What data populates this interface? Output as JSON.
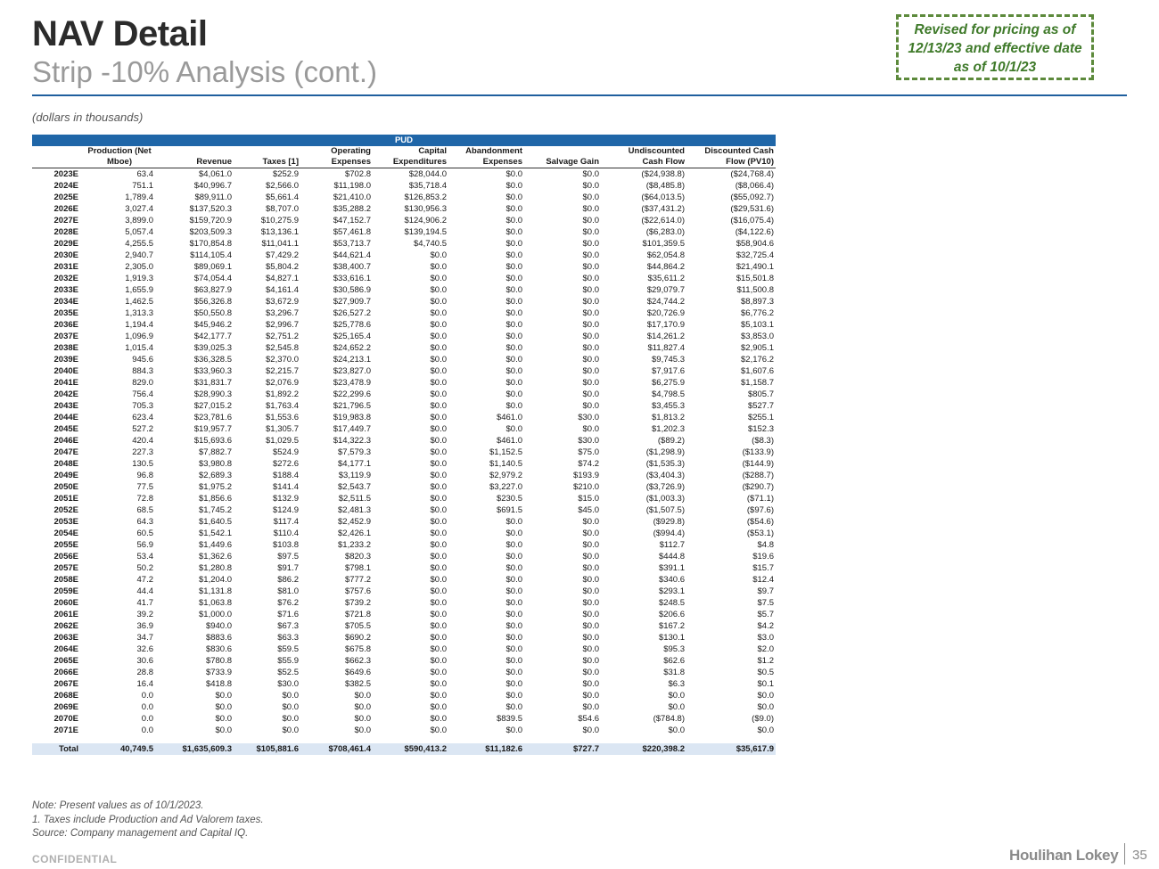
{
  "header": {
    "title": "NAV Detail",
    "subtitle": "Strip -10% Analysis (cont.)",
    "revised_note": "Revised for pricing as of 12/13/23 and effective date as of 10/1/23",
    "units": "(dollars in thousands)"
  },
  "table": {
    "band": "PUD",
    "headers_top": [
      "",
      "Production (Net",
      "",
      "",
      "Operating",
      "Capital",
      "Abandonment",
      "",
      "Undiscounted",
      "Discounted Cash"
    ],
    "headers_bottom": [
      "",
      "Mboe)",
      "Revenue",
      "Taxes [1]",
      "Expenses",
      "Expenditures",
      "Expenses",
      "Salvage Gain",
      "Cash Flow",
      "Flow (PV10)"
    ],
    "rows": [
      [
        "2023E",
        "63.4",
        "$4,061.0",
        "$252.9",
        "$702.8",
        "$28,044.0",
        "$0.0",
        "$0.0",
        "($24,938.8)",
        "($24,768.4)"
      ],
      [
        "2024E",
        "751.1",
        "$40,996.7",
        "$2,566.0",
        "$11,198.0",
        "$35,718.4",
        "$0.0",
        "$0.0",
        "($8,485.8)",
        "($8,066.4)"
      ],
      [
        "2025E",
        "1,789.4",
        "$89,911.0",
        "$5,661.4",
        "$21,410.0",
        "$126,853.2",
        "$0.0",
        "$0.0",
        "($64,013.5)",
        "($55,092.7)"
      ],
      [
        "2026E",
        "3,027.4",
        "$137,520.3",
        "$8,707.0",
        "$35,288.2",
        "$130,956.3",
        "$0.0",
        "$0.0",
        "($37,431.2)",
        "($29,531.6)"
      ],
      [
        "2027E",
        "3,899.0",
        "$159,720.9",
        "$10,275.9",
        "$47,152.7",
        "$124,906.2",
        "$0.0",
        "$0.0",
        "($22,614.0)",
        "($16,075.4)"
      ],
      [
        "2028E",
        "5,057.4",
        "$203,509.3",
        "$13,136.1",
        "$57,461.8",
        "$139,194.5",
        "$0.0",
        "$0.0",
        "($6,283.0)",
        "($4,122.6)"
      ],
      [
        "2029E",
        "4,255.5",
        "$170,854.8",
        "$11,041.1",
        "$53,713.7",
        "$4,740.5",
        "$0.0",
        "$0.0",
        "$101,359.5",
        "$58,904.6"
      ],
      [
        "2030E",
        "2,940.7",
        "$114,105.4",
        "$7,429.2",
        "$44,621.4",
        "$0.0",
        "$0.0",
        "$0.0",
        "$62,054.8",
        "$32,725.4"
      ],
      [
        "2031E",
        "2,305.0",
        "$89,069.1",
        "$5,804.2",
        "$38,400.7",
        "$0.0",
        "$0.0",
        "$0.0",
        "$44,864.2",
        "$21,490.1"
      ],
      [
        "2032E",
        "1,919.3",
        "$74,054.4",
        "$4,827.1",
        "$33,616.1",
        "$0.0",
        "$0.0",
        "$0.0",
        "$35,611.2",
        "$15,501.8"
      ],
      [
        "2033E",
        "1,655.9",
        "$63,827.9",
        "$4,161.4",
        "$30,586.9",
        "$0.0",
        "$0.0",
        "$0.0",
        "$29,079.7",
        "$11,500.8"
      ],
      [
        "2034E",
        "1,462.5",
        "$56,326.8",
        "$3,672.9",
        "$27,909.7",
        "$0.0",
        "$0.0",
        "$0.0",
        "$24,744.2",
        "$8,897.3"
      ],
      [
        "2035E",
        "1,313.3",
        "$50,550.8",
        "$3,296.7",
        "$26,527.2",
        "$0.0",
        "$0.0",
        "$0.0",
        "$20,726.9",
        "$6,776.2"
      ],
      [
        "2036E",
        "1,194.4",
        "$45,946.2",
        "$2,996.7",
        "$25,778.6",
        "$0.0",
        "$0.0",
        "$0.0",
        "$17,170.9",
        "$5,103.1"
      ],
      [
        "2037E",
        "1,096.9",
        "$42,177.7",
        "$2,751.2",
        "$25,165.4",
        "$0.0",
        "$0.0",
        "$0.0",
        "$14,261.2",
        "$3,853.0"
      ],
      [
        "2038E",
        "1,015.4",
        "$39,025.3",
        "$2,545.8",
        "$24,652.2",
        "$0.0",
        "$0.0",
        "$0.0",
        "$11,827.4",
        "$2,905.1"
      ],
      [
        "2039E",
        "945.6",
        "$36,328.5",
        "$2,370.0",
        "$24,213.1",
        "$0.0",
        "$0.0",
        "$0.0",
        "$9,745.3",
        "$2,176.2"
      ],
      [
        "2040E",
        "884.3",
        "$33,960.3",
        "$2,215.7",
        "$23,827.0",
        "$0.0",
        "$0.0",
        "$0.0",
        "$7,917.6",
        "$1,607.6"
      ],
      [
        "2041E",
        "829.0",
        "$31,831.7",
        "$2,076.9",
        "$23,478.9",
        "$0.0",
        "$0.0",
        "$0.0",
        "$6,275.9",
        "$1,158.7"
      ],
      [
        "2042E",
        "756.4",
        "$28,990.3",
        "$1,892.2",
        "$22,299.6",
        "$0.0",
        "$0.0",
        "$0.0",
        "$4,798.5",
        "$805.7"
      ],
      [
        "2043E",
        "705.3",
        "$27,015.2",
        "$1,763.4",
        "$21,796.5",
        "$0.0",
        "$0.0",
        "$0.0",
        "$3,455.3",
        "$527.7"
      ],
      [
        "2044E",
        "623.4",
        "$23,781.6",
        "$1,553.6",
        "$19,983.8",
        "$0.0",
        "$461.0",
        "$30.0",
        "$1,813.2",
        "$255.1"
      ],
      [
        "2045E",
        "527.2",
        "$19,957.7",
        "$1,305.7",
        "$17,449.7",
        "$0.0",
        "$0.0",
        "$0.0",
        "$1,202.3",
        "$152.3"
      ],
      [
        "2046E",
        "420.4",
        "$15,693.6",
        "$1,029.5",
        "$14,322.3",
        "$0.0",
        "$461.0",
        "$30.0",
        "($89.2)",
        "($8.3)"
      ],
      [
        "2047E",
        "227.3",
        "$7,882.7",
        "$524.9",
        "$7,579.3",
        "$0.0",
        "$1,152.5",
        "$75.0",
        "($1,298.9)",
        "($133.9)"
      ],
      [
        "2048E",
        "130.5",
        "$3,980.8",
        "$272.6",
        "$4,177.1",
        "$0.0",
        "$1,140.5",
        "$74.2",
        "($1,535.3)",
        "($144.9)"
      ],
      [
        "2049E",
        "96.8",
        "$2,689.3",
        "$188.4",
        "$3,119.9",
        "$0.0",
        "$2,979.2",
        "$193.9",
        "($3,404.3)",
        "($288.7)"
      ],
      [
        "2050E",
        "77.5",
        "$1,975.2",
        "$141.4",
        "$2,543.7",
        "$0.0",
        "$3,227.0",
        "$210.0",
        "($3,726.9)",
        "($290.7)"
      ],
      [
        "2051E",
        "72.8",
        "$1,856.6",
        "$132.9",
        "$2,511.5",
        "$0.0",
        "$230.5",
        "$15.0",
        "($1,003.3)",
        "($71.1)"
      ],
      [
        "2052E",
        "68.5",
        "$1,745.2",
        "$124.9",
        "$2,481.3",
        "$0.0",
        "$691.5",
        "$45.0",
        "($1,507.5)",
        "($97.6)"
      ],
      [
        "2053E",
        "64.3",
        "$1,640.5",
        "$117.4",
        "$2,452.9",
        "$0.0",
        "$0.0",
        "$0.0",
        "($929.8)",
        "($54.6)"
      ],
      [
        "2054E",
        "60.5",
        "$1,542.1",
        "$110.4",
        "$2,426.1",
        "$0.0",
        "$0.0",
        "$0.0",
        "($994.4)",
        "($53.1)"
      ],
      [
        "2055E",
        "56.9",
        "$1,449.6",
        "$103.8",
        "$1,233.2",
        "$0.0",
        "$0.0",
        "$0.0",
        "$112.7",
        "$4.8"
      ],
      [
        "2056E",
        "53.4",
        "$1,362.6",
        "$97.5",
        "$820.3",
        "$0.0",
        "$0.0",
        "$0.0",
        "$444.8",
        "$19.6"
      ],
      [
        "2057E",
        "50.2",
        "$1,280.8",
        "$91.7",
        "$798.1",
        "$0.0",
        "$0.0",
        "$0.0",
        "$391.1",
        "$15.7"
      ],
      [
        "2058E",
        "47.2",
        "$1,204.0",
        "$86.2",
        "$777.2",
        "$0.0",
        "$0.0",
        "$0.0",
        "$340.6",
        "$12.4"
      ],
      [
        "2059E",
        "44.4",
        "$1,131.8",
        "$81.0",
        "$757.6",
        "$0.0",
        "$0.0",
        "$0.0",
        "$293.1",
        "$9.7"
      ],
      [
        "2060E",
        "41.7",
        "$1,063.8",
        "$76.2",
        "$739.2",
        "$0.0",
        "$0.0",
        "$0.0",
        "$248.5",
        "$7.5"
      ],
      [
        "2061E",
        "39.2",
        "$1,000.0",
        "$71.6",
        "$721.8",
        "$0.0",
        "$0.0",
        "$0.0",
        "$206.6",
        "$5.7"
      ],
      [
        "2062E",
        "36.9",
        "$940.0",
        "$67.3",
        "$705.5",
        "$0.0",
        "$0.0",
        "$0.0",
        "$167.2",
        "$4.2"
      ],
      [
        "2063E",
        "34.7",
        "$883.6",
        "$63.3",
        "$690.2",
        "$0.0",
        "$0.0",
        "$0.0",
        "$130.1",
        "$3.0"
      ],
      [
        "2064E",
        "32.6",
        "$830.6",
        "$59.5",
        "$675.8",
        "$0.0",
        "$0.0",
        "$0.0",
        "$95.3",
        "$2.0"
      ],
      [
        "2065E",
        "30.6",
        "$780.8",
        "$55.9",
        "$662.3",
        "$0.0",
        "$0.0",
        "$0.0",
        "$62.6",
        "$1.2"
      ],
      [
        "2066E",
        "28.8",
        "$733.9",
        "$52.5",
        "$649.6",
        "$0.0",
        "$0.0",
        "$0.0",
        "$31.8",
        "$0.5"
      ],
      [
        "2067E",
        "16.4",
        "$418.8",
        "$30.0",
        "$382.5",
        "$0.0",
        "$0.0",
        "$0.0",
        "$6.3",
        "$0.1"
      ],
      [
        "2068E",
        "0.0",
        "$0.0",
        "$0.0",
        "$0.0",
        "$0.0",
        "$0.0",
        "$0.0",
        "$0.0",
        "$0.0"
      ],
      [
        "2069E",
        "0.0",
        "$0.0",
        "$0.0",
        "$0.0",
        "$0.0",
        "$0.0",
        "$0.0",
        "$0.0",
        "$0.0"
      ],
      [
        "2070E",
        "0.0",
        "$0.0",
        "$0.0",
        "$0.0",
        "$0.0",
        "$839.5",
        "$54.6",
        "($784.8)",
        "($9.0)"
      ],
      [
        "2071E",
        "0.0",
        "$0.0",
        "$0.0",
        "$0.0",
        "$0.0",
        "$0.0",
        "$0.0",
        "$0.0",
        "$0.0"
      ]
    ],
    "total": [
      "Total",
      "40,749.5",
      "$1,635,609.3",
      "$105,881.6",
      "$708,461.4",
      "$590,413.2",
      "$11,182.6",
      "$727.7",
      "$220,398.2",
      "$35,617.9"
    ]
  },
  "notes": [
    "Note: Present values as of 10/1/2023.",
    "1. Taxes include Production and Ad Valorem taxes.",
    "Source: Company management and Capital IQ."
  ],
  "footer": {
    "confidential": "CONFIDENTIAL",
    "logo_text": "Houlihan Lokey",
    "page_number": "35"
  }
}
